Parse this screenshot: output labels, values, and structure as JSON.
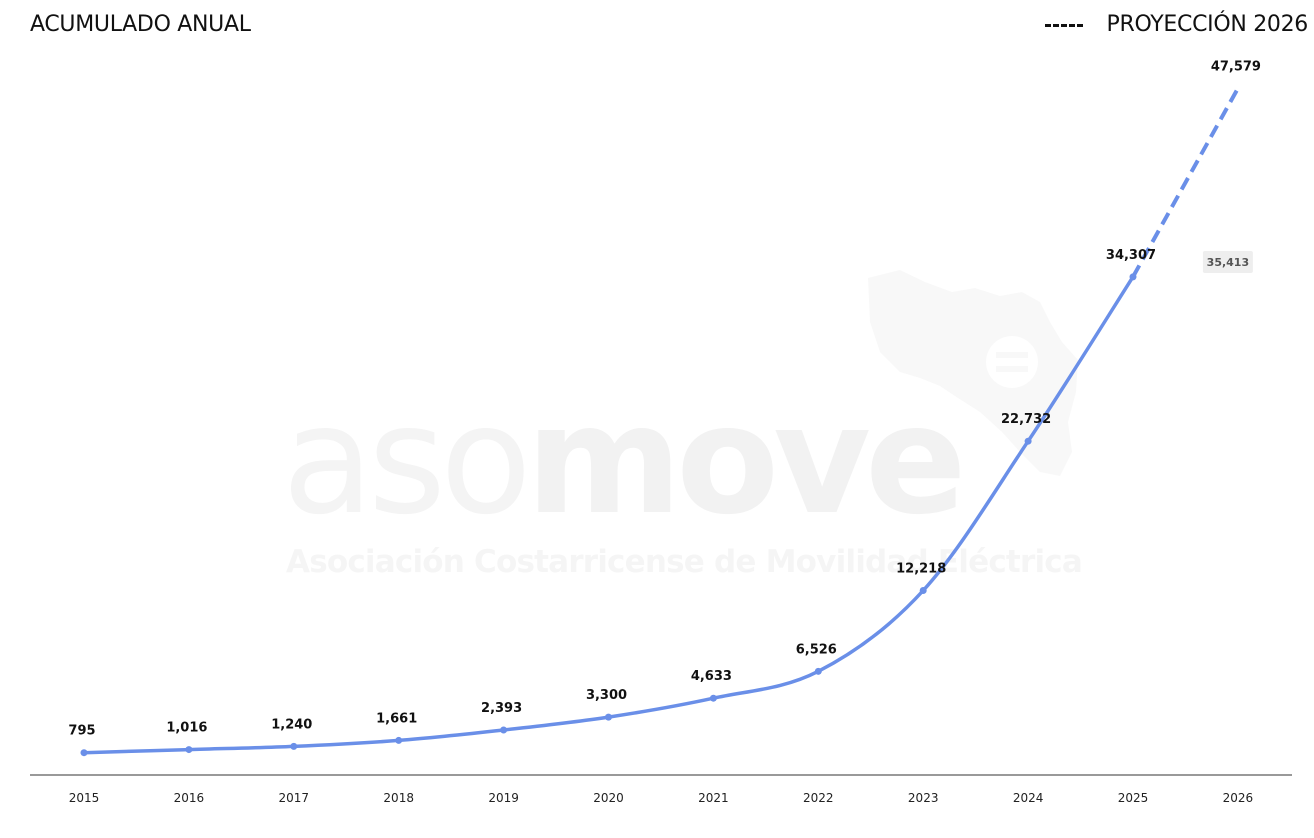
{
  "header": {
    "title": "ACUMULADO ANUAL",
    "legend_label": "PROYECCIÓN 2026"
  },
  "watermark": {
    "brand_light": "aso",
    "brand_bold": "move",
    "tagline": "Asociación Costarricense de Movilidad Eléctrica"
  },
  "colors": {
    "line": "#6a8fe8",
    "axis": "#333333",
    "watermark": "#f3f3f3"
  },
  "chart_data": {
    "type": "line",
    "title": "ACUMULADO ANUAL",
    "x": [
      "2015",
      "2016",
      "2017",
      "2018",
      "2019",
      "2020",
      "2021",
      "2022",
      "2023",
      "2024",
      "2025",
      "2026"
    ],
    "series": [
      {
        "values": [
          795,
          1016,
          1240,
          1661,
          2393,
          3300,
          4633,
          6526,
          12218,
          22732,
          34307,
          null
        ],
        "style": "solid"
      },
      {
        "name": "PROYECCIÓN 2026",
        "values": [
          null,
          null,
          null,
          null,
          null,
          null,
          null,
          null,
          null,
          null,
          34307,
          47579
        ],
        "style": "dashed"
      }
    ],
    "data_labels": [
      "795",
      "1,016",
      "1,240",
      "1,661",
      "2,393",
      "3,300",
      "4,633",
      "6,526",
      "12,218",
      "22,732",
      "34,307",
      "47,579"
    ],
    "annotation": {
      "x": "2026",
      "text": "35,413"
    },
    "ylim": [
      0,
      50000
    ],
    "grid": false,
    "legend_position": "top-right"
  }
}
